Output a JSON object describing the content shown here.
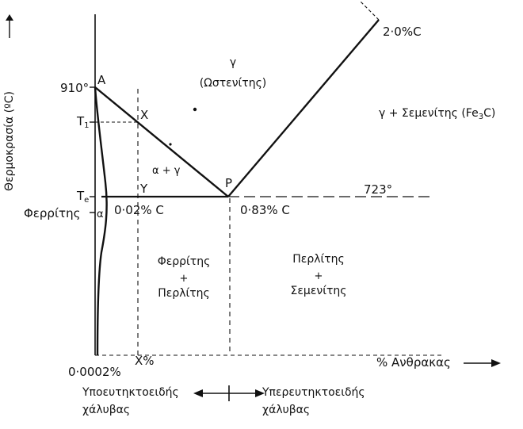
{
  "diagram": {
    "y_axis_label": "Θερμοκρασία (ºC)",
    "x_axis_label": "% Ανθρακας",
    "temp_910_label": "910°",
    "temp_723_label": "723°",
    "t1_label": "T",
    "t1_sub": "1",
    "te_label": "T",
    "te_sub": "e",
    "point_a_label": "A",
    "point_x_label": "X",
    "point_y_label": "Y",
    "point_p_label": "P",
    "ferrite_label": "Φερρίτης",
    "alpha_label": "α",
    "carbon_0_02_label": "0·02% C",
    "carbon_0_83_label": "0·83% C",
    "carbon_2_0_label": "2·0%C",
    "carbon_0_0002_label": "0·0002%",
    "x_percent_label": "X%",
    "austenite_region": {
      "gamma": "γ",
      "name": "(Ωστενίτης)"
    },
    "alpha_gamma_region": "α + γ",
    "gamma_cementite_region": {
      "text": "γ + Σεμενίτης (Fe",
      "sub": "3",
      "end": "C)"
    },
    "ferrite_pearlite_region": {
      "line1": "Φερρίτης",
      "plus": "+",
      "line2": "Περλίτης"
    },
    "pearlite_cementite_region": {
      "line1": "Περλίτης",
      "plus": "+",
      "line2": "Σεμενίτης"
    },
    "hypoeutectoid_label": {
      "line1": "Υποευτηκτοειδής",
      "line2": "χάλυβας"
    },
    "hypereutectoid_label": {
      "line1": "Υπερευτηκτοειδής",
      "line2": "χάλυβας"
    },
    "colors": {
      "background": "#ffffff",
      "ink": "#111111"
    }
  }
}
